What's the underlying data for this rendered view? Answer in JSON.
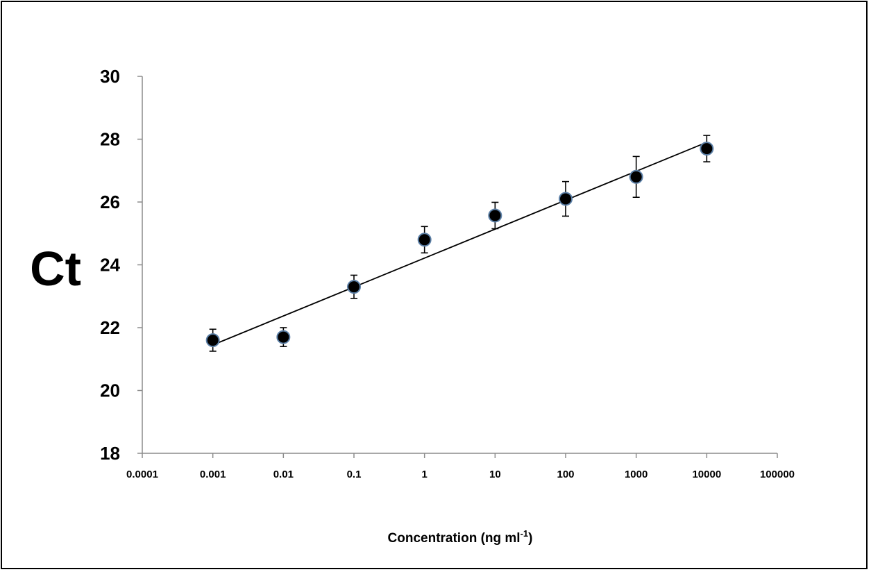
{
  "chart_data": {
    "type": "scatter",
    "title": "",
    "ylabel": "Ct",
    "xlabel": {
      "text": "Concentration (ng ml",
      "superscript": "-1",
      "suffix": ")"
    },
    "xscale": "log",
    "xlim": [
      0.0001,
      100000
    ],
    "ylim": [
      18,
      30
    ],
    "x_ticks": [
      0.0001,
      0.001,
      0.01,
      0.1,
      1,
      10,
      100,
      1000,
      10000,
      100000
    ],
    "x_tick_labels": [
      "0.0001",
      "0.001",
      "0.01",
      "0.1",
      "1",
      "10",
      "100",
      "1000",
      "10000",
      "100000"
    ],
    "y_ticks": [
      18,
      20,
      22,
      24,
      26,
      28,
      30
    ],
    "y_tick_labels": [
      "18",
      "20",
      "22",
      "24",
      "26",
      "28",
      "30"
    ],
    "grid": false,
    "legend": "none",
    "series": [
      {
        "x": [
          0.001,
          0.01,
          0.1,
          1,
          10,
          100,
          1000,
          10000
        ],
        "y": [
          21.6,
          21.7,
          23.3,
          24.8,
          25.57,
          26.1,
          26.8,
          27.7
        ],
        "error": [
          0.35,
          0.3,
          0.37,
          0.42,
          0.42,
          0.55,
          0.65,
          0.42
        ],
        "marker_fill": "#000000",
        "marker_edge": "#5b7fa6"
      }
    ],
    "trendline": {
      "type": "linear-in-log10-x",
      "x_range": [
        0.001,
        10000
      ],
      "y_range": [
        21.45,
        27.9
      ],
      "color": "#000000"
    }
  }
}
